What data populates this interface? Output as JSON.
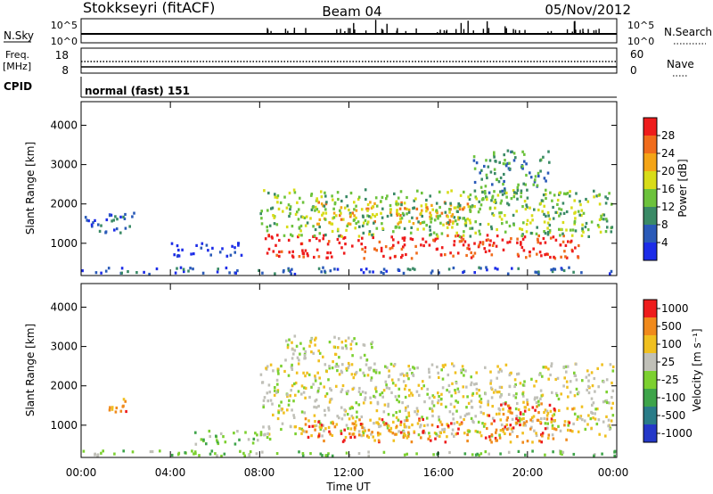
{
  "header": {
    "station": "Stokkseyri (fitACF)",
    "beam": "Beam 04",
    "date": "05/Nov/2012"
  },
  "noise_panel": {
    "left_label": "N.Sky",
    "left_ticks": [
      "10^5",
      "10^0"
    ],
    "right_ticks": [
      "10^5",
      "10^0"
    ],
    "right_label": "N.Search"
  },
  "freq_panel": {
    "left_label_top": "Freq.",
    "left_label_unit": "[MHz]",
    "left_ticks": [
      "18",
      "8"
    ],
    "right_ticks": [
      "60",
      "0"
    ],
    "right_label": "Nave"
  },
  "cpid_panel": {
    "label": "CPID",
    "text": "normal (fast) 151"
  },
  "chart_data": [
    {
      "type": "heatmap",
      "name": "Power",
      "ylabel": "Slant Range [km]",
      "yticks": [
        "4000",
        "3000",
        "2000",
        "1000"
      ],
      "ylim": [
        180,
        4600
      ],
      "xlim_hours": [
        0,
        24
      ],
      "colorbar_label": "Power [dB]",
      "colorbar_ticks": [
        "28",
        "24",
        "20",
        "16",
        "12",
        "8",
        "4"
      ],
      "colors": [
        "#1c2ce8",
        "#2a5ab8",
        "#3a8a66",
        "#6cc23c",
        "#d8dc18",
        "#f4a416",
        "#f06c1c",
        "#ee1c1c"
      ],
      "regions": [
        {
          "t0": 8.2,
          "t1": 22.3,
          "r0": 650,
          "r1": 1250,
          "level": 7
        },
        {
          "t0": 10.5,
          "t1": 17.5,
          "r0": 1500,
          "r1": 2100,
          "level": 5
        },
        {
          "t0": 8.0,
          "t1": 23.8,
          "r0": 1200,
          "r1": 2400,
          "level": 3
        },
        {
          "t0": 0.0,
          "t1": 2.5,
          "r0": 1300,
          "r1": 1800,
          "level": 1
        },
        {
          "t0": 4.0,
          "t1": 7.2,
          "r0": 700,
          "r1": 1050,
          "level": 0
        },
        {
          "t0": 17.5,
          "t1": 21.0,
          "r0": 2300,
          "r1": 3400,
          "level": 2
        },
        {
          "t0": 0.0,
          "t1": 24.0,
          "r0": 180,
          "r1": 420,
          "level": 1
        }
      ]
    },
    {
      "type": "heatmap",
      "name": "Velocity",
      "ylabel": "Slant Range [km]",
      "yticks": [
        "4000",
        "3000",
        "2000",
        "1000"
      ],
      "ylim": [
        180,
        4600
      ],
      "xlim_hours": [
        0,
        24
      ],
      "colorbar_label": "Velocity [m s⁻¹]",
      "colorbar_ticks": [
        "1000",
        "500",
        "100",
        "25",
        "-25",
        "-100",
        "-500",
        "-1000"
      ],
      "colors": [
        "#2438c8",
        "#2a7c88",
        "#3ea44a",
        "#7cd030",
        "#c0c0b8",
        "#f0c020",
        "#f08a1c",
        "#ee1c1c"
      ],
      "regions": [
        {
          "t0": 8.0,
          "t1": 23.8,
          "r0": 750,
          "r1": 2600,
          "level": 4
        },
        {
          "t0": 9.0,
          "t1": 13.0,
          "r0": 2600,
          "r1": 3300,
          "level": 4
        },
        {
          "t0": 10.0,
          "t1": 17.5,
          "r0": 600,
          "r1": 1200,
          "level": 6
        },
        {
          "t0": 5.0,
          "t1": 8.5,
          "r0": 550,
          "r1": 900,
          "level": 3
        },
        {
          "t0": 1.0,
          "t1": 2.2,
          "r0": 1300,
          "r1": 1700,
          "level": 6
        },
        {
          "t0": 18.0,
          "t1": 22.0,
          "r0": 600,
          "r1": 1600,
          "level": 6
        },
        {
          "t0": 0.0,
          "t1": 24.0,
          "r0": 180,
          "r1": 380,
          "level": 3
        }
      ]
    }
  ],
  "x_axis": {
    "ticks": [
      "00:00",
      "04:00",
      "08:00",
      "12:00",
      "16:00",
      "20:00",
      "00:00"
    ],
    "label": "Time UT"
  }
}
